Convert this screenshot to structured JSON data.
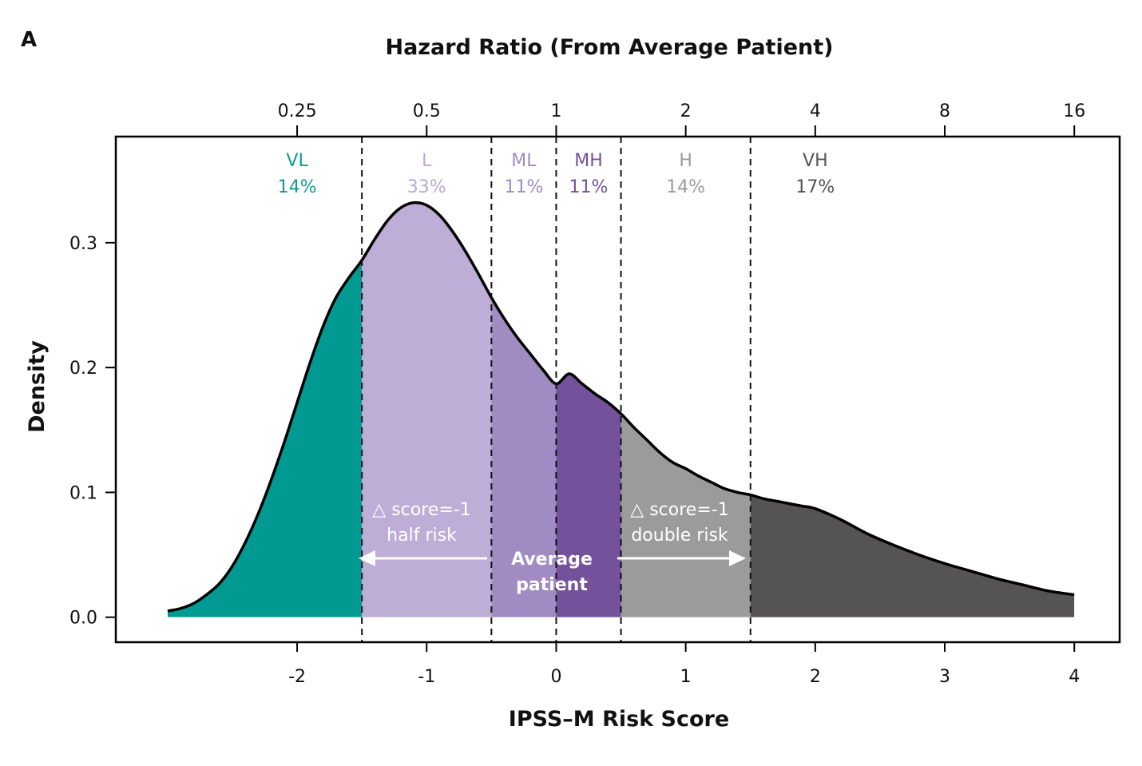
{
  "panel_label": "A",
  "chart_data": {
    "type": "area",
    "title": "",
    "top_axis_label": "Hazard Ratio (From Average Patient)",
    "xlabel": "IPSS–M Risk Score",
    "ylabel": "Density",
    "xlim": [
      -3.4,
      4.35
    ],
    "ylim": [
      -0.02,
      0.385
    ],
    "x_ticks": [
      -2,
      -1,
      0,
      1,
      2,
      3,
      4
    ],
    "x_tick_labels": [
      "-2",
      "-1",
      "0",
      "1",
      "2",
      "3",
      "4"
    ],
    "y_ticks": [
      0.0,
      0.1,
      0.2,
      0.3
    ],
    "y_tick_labels": [
      "0.0",
      "0.1",
      "0.2",
      "0.3"
    ],
    "top_ticks_x": [
      -2,
      -1,
      0,
      1,
      2,
      3,
      4
    ],
    "top_tick_labels": [
      "0.25",
      "0.5",
      "1",
      "2",
      "4",
      "8",
      "16"
    ],
    "grid": false,
    "density_x": [
      -3.0,
      -2.9,
      -2.8,
      -2.7,
      -2.6,
      -2.5,
      -2.4,
      -2.3,
      -2.2,
      -2.1,
      -2.0,
      -1.9,
      -1.8,
      -1.7,
      -1.6,
      -1.5,
      -1.4,
      -1.3,
      -1.2,
      -1.1,
      -1.0,
      -0.9,
      -0.8,
      -0.7,
      -0.6,
      -0.5,
      -0.4,
      -0.3,
      -0.2,
      -0.1,
      0.0,
      0.1,
      0.2,
      0.3,
      0.4,
      0.5,
      0.6,
      0.7,
      0.8,
      0.9,
      1.0,
      1.1,
      1.2,
      1.3,
      1.4,
      1.5,
      1.6,
      1.7,
      1.8,
      1.9,
      2.0,
      2.2,
      2.4,
      2.6,
      2.8,
      3.0,
      3.2,
      3.4,
      3.6,
      3.8,
      4.0
    ],
    "density_y": [
      0.005,
      0.007,
      0.011,
      0.018,
      0.027,
      0.041,
      0.06,
      0.083,
      0.11,
      0.14,
      0.172,
      0.204,
      0.233,
      0.256,
      0.272,
      0.286,
      0.303,
      0.318,
      0.328,
      0.332,
      0.33,
      0.322,
      0.309,
      0.293,
      0.275,
      0.256,
      0.239,
      0.224,
      0.211,
      0.198,
      0.187,
      0.195,
      0.187,
      0.179,
      0.172,
      0.163,
      0.152,
      0.142,
      0.132,
      0.124,
      0.119,
      0.113,
      0.108,
      0.103,
      0.1,
      0.098,
      0.095,
      0.093,
      0.091,
      0.089,
      0.087,
      0.078,
      0.067,
      0.058,
      0.05,
      0.043,
      0.037,
      0.031,
      0.026,
      0.021,
      0.018
    ],
    "categories": [
      {
        "label": "VL",
        "percent": "14%",
        "from": -3.0,
        "to": -1.5,
        "fill": "#009a93",
        "text_color": "#119b95"
      },
      {
        "label": "L",
        "percent": "33%",
        "from": -1.5,
        "to": -0.5,
        "fill": "#bdadd7",
        "text_color": "#b9a9d4"
      },
      {
        "label": "ML",
        "percent": "11%",
        "from": -0.5,
        "to": 0.0,
        "fill": "#a08bc2",
        "text_color": "#a08bc2"
      },
      {
        "label": "MH",
        "percent": "11%",
        "from": 0.0,
        "to": 0.5,
        "fill": "#73519b",
        "text_color": "#73519b"
      },
      {
        "label": "H",
        "percent": "14%",
        "from": 0.5,
        "to": 1.5,
        "fill": "#9b9b9b",
        "text_color": "#9b9b9b"
      },
      {
        "label": "VH",
        "percent": "17%",
        "from": 1.5,
        "to": 4.0,
        "fill": "#555354",
        "text_color": "#555354"
      }
    ],
    "category_label_x": [
      -2,
      -1,
      -0.25,
      0.25,
      1,
      2
    ],
    "cutoffs": [
      -1.5,
      -0.5,
      0.0,
      0.5,
      1.5
    ],
    "annotations": {
      "left_line1": "△ score=-1",
      "left_line2": "half risk",
      "right_line1": "△ score=-1",
      "right_line2": "double risk",
      "center_line1": "Average",
      "center_line2": "patient"
    }
  }
}
